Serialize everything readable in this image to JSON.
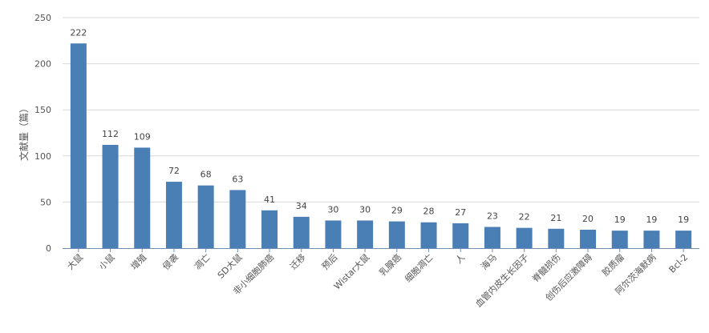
{
  "chart_data": {
    "type": "bar",
    "title": "",
    "xlabel": "",
    "ylabel": "文献量（篇）",
    "ylim": [
      0,
      250
    ],
    "yticks": [
      0,
      50,
      100,
      150,
      200,
      250
    ],
    "grid": true,
    "bar_color": "#4a7fb5",
    "categories": [
      "大鼠",
      "小鼠",
      "增殖",
      "侵袭",
      "凋亡",
      "SD大鼠",
      "非小细胞肺癌",
      "迁移",
      "预后",
      "Wistar大鼠",
      "乳腺癌",
      "细胞凋亡",
      "人",
      "海马",
      "血管内皮生长因子",
      "脊髓损伤",
      "创伤后应激障碍",
      "胶质瘤",
      "阿尔茨海默病",
      "Bcl-2"
    ],
    "values": [
      222,
      112,
      109,
      72,
      68,
      63,
      41,
      34,
      30,
      30,
      29,
      28,
      27,
      23,
      22,
      21,
      20,
      19,
      19,
      19
    ]
  }
}
